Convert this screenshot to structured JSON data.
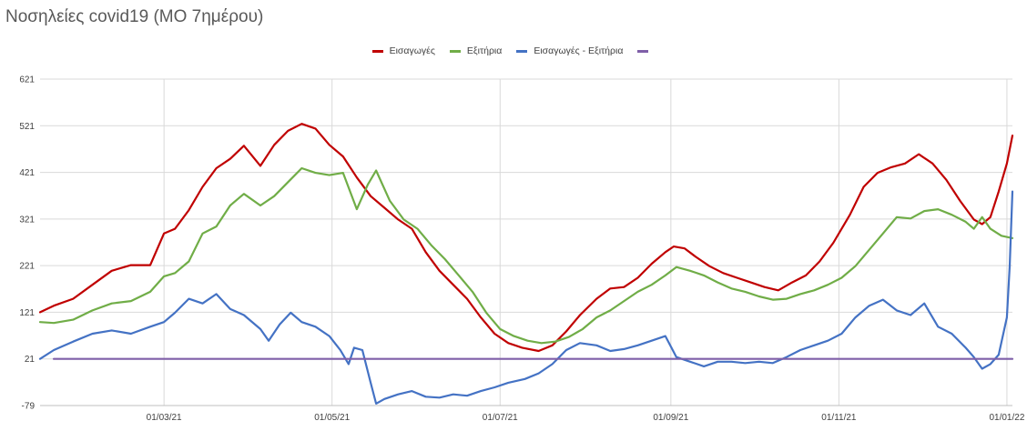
{
  "chart_data": {
    "type": "line",
    "title": "Νοσηλείες covid19 (ΜΟ 7ημέρου)",
    "ylim": [
      -79,
      621
    ],
    "yticks": [
      -79,
      21,
      121,
      221,
      321,
      421,
      521,
      621
    ],
    "x_start": "2021-01-15",
    "x_end": "2022-01-03",
    "xticks": [
      {
        "date": "2021-03-01",
        "label": "01/03/21"
      },
      {
        "date": "2021-05-01",
        "label": "01/05/21"
      },
      {
        "date": "2021-07-01",
        "label": "01/07/21"
      },
      {
        "date": "2021-09-01",
        "label": "01/09/21"
      },
      {
        "date": "2021-11-01",
        "label": "01/11/21"
      },
      {
        "date": "2022-01-01",
        "label": "01/01/22"
      }
    ],
    "grid": true,
    "legend_position": "top",
    "series": [
      {
        "name": "Εισαγωγές",
        "color": "#c00000",
        "points": [
          [
            "2021-01-15",
            121
          ],
          [
            "2021-01-20",
            135
          ],
          [
            "2021-01-27",
            150
          ],
          [
            "2021-02-03",
            180
          ],
          [
            "2021-02-10",
            210
          ],
          [
            "2021-02-17",
            222
          ],
          [
            "2021-02-24",
            222
          ],
          [
            "2021-03-01",
            290
          ],
          [
            "2021-03-05",
            300
          ],
          [
            "2021-03-10",
            340
          ],
          [
            "2021-03-15",
            390
          ],
          [
            "2021-03-20",
            430
          ],
          [
            "2021-03-25",
            450
          ],
          [
            "2021-03-30",
            478
          ],
          [
            "2021-04-05",
            435
          ],
          [
            "2021-04-10",
            480
          ],
          [
            "2021-04-15",
            510
          ],
          [
            "2021-04-20",
            525
          ],
          [
            "2021-04-25",
            515
          ],
          [
            "2021-04-30",
            480
          ],
          [
            "2021-05-05",
            455
          ],
          [
            "2021-05-10",
            410
          ],
          [
            "2021-05-15",
            370
          ],
          [
            "2021-05-20",
            345
          ],
          [
            "2021-05-25",
            320
          ],
          [
            "2021-05-30",
            300
          ],
          [
            "2021-06-04",
            250
          ],
          [
            "2021-06-09",
            210
          ],
          [
            "2021-06-14",
            180
          ],
          [
            "2021-06-19",
            150
          ],
          [
            "2021-06-24",
            110
          ],
          [
            "2021-06-29",
            75
          ],
          [
            "2021-07-04",
            55
          ],
          [
            "2021-07-09",
            45
          ],
          [
            "2021-07-15",
            38
          ],
          [
            "2021-07-20",
            50
          ],
          [
            "2021-07-25",
            80
          ],
          [
            "2021-07-30",
            115
          ],
          [
            "2021-08-05",
            150
          ],
          [
            "2021-08-10",
            172
          ],
          [
            "2021-08-15",
            175
          ],
          [
            "2021-08-20",
            195
          ],
          [
            "2021-08-25",
            225
          ],
          [
            "2021-08-30",
            250
          ],
          [
            "2021-09-02",
            262
          ],
          [
            "2021-09-06",
            258
          ],
          [
            "2021-09-10",
            240
          ],
          [
            "2021-09-15",
            220
          ],
          [
            "2021-09-20",
            205
          ],
          [
            "2021-09-25",
            195
          ],
          [
            "2021-09-30",
            185
          ],
          [
            "2021-10-05",
            175
          ],
          [
            "2021-10-10",
            168
          ],
          [
            "2021-10-15",
            185
          ],
          [
            "2021-10-20",
            200
          ],
          [
            "2021-10-25",
            230
          ],
          [
            "2021-10-30",
            270
          ],
          [
            "2021-11-05",
            330
          ],
          [
            "2021-11-10",
            390
          ],
          [
            "2021-11-15",
            420
          ],
          [
            "2021-11-20",
            432
          ],
          [
            "2021-11-25",
            440
          ],
          [
            "2021-11-30",
            460
          ],
          [
            "2021-12-05",
            440
          ],
          [
            "2021-12-10",
            405
          ],
          [
            "2021-12-15",
            360
          ],
          [
            "2021-12-20",
            320
          ],
          [
            "2021-12-23",
            310
          ],
          [
            "2021-12-26",
            325
          ],
          [
            "2021-12-29",
            380
          ],
          [
            "2022-01-01",
            440
          ],
          [
            "2022-01-03",
            500
          ]
        ]
      },
      {
        "name": "Εξιτήρια",
        "color": "#70ad47",
        "points": [
          [
            "2021-01-15",
            100
          ],
          [
            "2021-01-20",
            98
          ],
          [
            "2021-01-27",
            105
          ],
          [
            "2021-02-03",
            125
          ],
          [
            "2021-02-10",
            140
          ],
          [
            "2021-02-17",
            145
          ],
          [
            "2021-02-24",
            165
          ],
          [
            "2021-03-01",
            198
          ],
          [
            "2021-03-05",
            205
          ],
          [
            "2021-03-10",
            230
          ],
          [
            "2021-03-15",
            290
          ],
          [
            "2021-03-20",
            305
          ],
          [
            "2021-03-25",
            350
          ],
          [
            "2021-03-30",
            375
          ],
          [
            "2021-04-05",
            350
          ],
          [
            "2021-04-10",
            370
          ],
          [
            "2021-04-15",
            400
          ],
          [
            "2021-04-20",
            430
          ],
          [
            "2021-04-25",
            420
          ],
          [
            "2021-04-30",
            415
          ],
          [
            "2021-05-05",
            420
          ],
          [
            "2021-05-10",
            342
          ],
          [
            "2021-05-14",
            395
          ],
          [
            "2021-05-17",
            425
          ],
          [
            "2021-05-22",
            360
          ],
          [
            "2021-05-27",
            320
          ],
          [
            "2021-06-01",
            300
          ],
          [
            "2021-06-06",
            265
          ],
          [
            "2021-06-11",
            235
          ],
          [
            "2021-06-16",
            200
          ],
          [
            "2021-06-21",
            165
          ],
          [
            "2021-06-26",
            120
          ],
          [
            "2021-07-01",
            85
          ],
          [
            "2021-07-06",
            70
          ],
          [
            "2021-07-11",
            60
          ],
          [
            "2021-07-16",
            55
          ],
          [
            "2021-07-21",
            58
          ],
          [
            "2021-07-26",
            68
          ],
          [
            "2021-07-31",
            85
          ],
          [
            "2021-08-05",
            110
          ],
          [
            "2021-08-10",
            125
          ],
          [
            "2021-08-15",
            145
          ],
          [
            "2021-08-20",
            165
          ],
          [
            "2021-08-25",
            180
          ],
          [
            "2021-08-30",
            200
          ],
          [
            "2021-09-03",
            218
          ],
          [
            "2021-09-08",
            210
          ],
          [
            "2021-09-13",
            200
          ],
          [
            "2021-09-18",
            185
          ],
          [
            "2021-09-23",
            172
          ],
          [
            "2021-09-28",
            165
          ],
          [
            "2021-10-03",
            155
          ],
          [
            "2021-10-08",
            148
          ],
          [
            "2021-10-13",
            150
          ],
          [
            "2021-10-18",
            160
          ],
          [
            "2021-10-23",
            168
          ],
          [
            "2021-10-28",
            180
          ],
          [
            "2021-11-02",
            195
          ],
          [
            "2021-11-07",
            220
          ],
          [
            "2021-11-12",
            255
          ],
          [
            "2021-11-17",
            290
          ],
          [
            "2021-11-22",
            325
          ],
          [
            "2021-11-27",
            322
          ],
          [
            "2021-12-02",
            338
          ],
          [
            "2021-12-07",
            342
          ],
          [
            "2021-12-12",
            330
          ],
          [
            "2021-12-17",
            315
          ],
          [
            "2021-12-20",
            300
          ],
          [
            "2021-12-23",
            325
          ],
          [
            "2021-12-26",
            300
          ],
          [
            "2021-12-30",
            285
          ],
          [
            "2022-01-03",
            280
          ]
        ]
      },
      {
        "name": "Εισαγωγές - Εξιτήρια",
        "color": "#4472c4",
        "points": [
          [
            "2021-01-15",
            21
          ],
          [
            "2021-01-20",
            40
          ],
          [
            "2021-01-27",
            58
          ],
          [
            "2021-02-03",
            75
          ],
          [
            "2021-02-10",
            82
          ],
          [
            "2021-02-17",
            75
          ],
          [
            "2021-02-24",
            90
          ],
          [
            "2021-03-01",
            100
          ],
          [
            "2021-03-05",
            120
          ],
          [
            "2021-03-10",
            150
          ],
          [
            "2021-03-15",
            140
          ],
          [
            "2021-03-20",
            160
          ],
          [
            "2021-03-25",
            128
          ],
          [
            "2021-03-30",
            115
          ],
          [
            "2021-04-05",
            85
          ],
          [
            "2021-04-08",
            60
          ],
          [
            "2021-04-12",
            95
          ],
          [
            "2021-04-16",
            120
          ],
          [
            "2021-04-20",
            100
          ],
          [
            "2021-04-25",
            90
          ],
          [
            "2021-04-30",
            70
          ],
          [
            "2021-05-04",
            40
          ],
          [
            "2021-05-07",
            10
          ],
          [
            "2021-05-09",
            45
          ],
          [
            "2021-05-12",
            40
          ],
          [
            "2021-05-15",
            -30
          ],
          [
            "2021-05-17",
            -75
          ],
          [
            "2021-05-20",
            -65
          ],
          [
            "2021-05-25",
            -55
          ],
          [
            "2021-05-30",
            -48
          ],
          [
            "2021-06-04",
            -60
          ],
          [
            "2021-06-09",
            -62
          ],
          [
            "2021-06-14",
            -55
          ],
          [
            "2021-06-19",
            -58
          ],
          [
            "2021-06-24",
            -48
          ],
          [
            "2021-06-29",
            -40
          ],
          [
            "2021-07-04",
            -30
          ],
          [
            "2021-07-10",
            -22
          ],
          [
            "2021-07-15",
            -10
          ],
          [
            "2021-07-20",
            10
          ],
          [
            "2021-07-25",
            40
          ],
          [
            "2021-07-30",
            55
          ],
          [
            "2021-08-05",
            50
          ],
          [
            "2021-08-10",
            38
          ],
          [
            "2021-08-15",
            42
          ],
          [
            "2021-08-20",
            50
          ],
          [
            "2021-08-25",
            60
          ],
          [
            "2021-08-30",
            70
          ],
          [
            "2021-09-03",
            25
          ],
          [
            "2021-09-08",
            15
          ],
          [
            "2021-09-13",
            5
          ],
          [
            "2021-09-18",
            15
          ],
          [
            "2021-09-23",
            15
          ],
          [
            "2021-09-28",
            12
          ],
          [
            "2021-10-03",
            15
          ],
          [
            "2021-10-08",
            12
          ],
          [
            "2021-10-13",
            25
          ],
          [
            "2021-10-18",
            40
          ],
          [
            "2021-10-23",
            50
          ],
          [
            "2021-10-28",
            60
          ],
          [
            "2021-11-02",
            75
          ],
          [
            "2021-11-07",
            110
          ],
          [
            "2021-11-12",
            135
          ],
          [
            "2021-11-17",
            148
          ],
          [
            "2021-11-22",
            125
          ],
          [
            "2021-11-27",
            115
          ],
          [
            "2021-12-02",
            140
          ],
          [
            "2021-12-07",
            90
          ],
          [
            "2021-12-12",
            75
          ],
          [
            "2021-12-17",
            45
          ],
          [
            "2021-12-20",
            25
          ],
          [
            "2021-12-23",
            0
          ],
          [
            "2021-12-26",
            10
          ],
          [
            "2021-12-29",
            30
          ],
          [
            "2022-01-01",
            110
          ],
          [
            "2022-01-02",
            220
          ],
          [
            "2022-01-03",
            380
          ]
        ]
      },
      {
        "name": "",
        "color": "#7f5fa8",
        "points": [
          [
            "2021-01-20",
            21
          ],
          [
            "2022-01-03",
            21
          ]
        ]
      }
    ]
  }
}
